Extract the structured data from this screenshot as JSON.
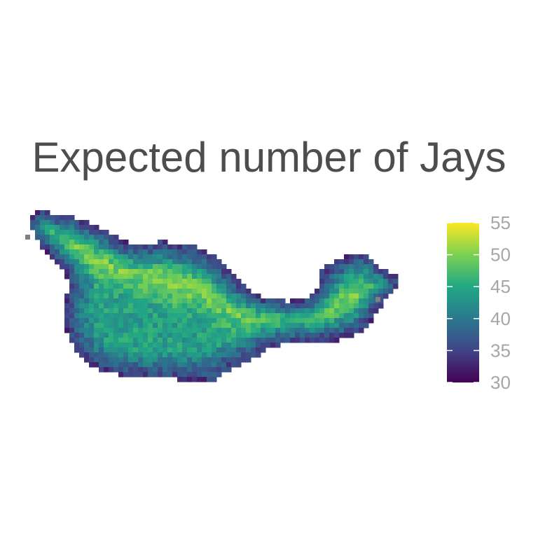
{
  "chart_data": {
    "type": "heatmap",
    "title": "Expected number of Jays",
    "xlabel": "",
    "ylabel": "",
    "colorscale": "viridis",
    "colors": [
      "#440154",
      "#414487",
      "#2a788e",
      "#22a884",
      "#7ad151",
      "#fde725"
    ],
    "missing_color": "#808080",
    "legend": {
      "position": "right",
      "limits": [
        30,
        55
      ],
      "ticks": [
        "30",
        "35",
        "40",
        "45",
        "50",
        "55"
      ]
    },
    "value_range": [
      31,
      52
    ],
    "summary_values": {
      "edge_typical": 34,
      "interior_typical": 44,
      "ridge_peak": 50
    }
  }
}
